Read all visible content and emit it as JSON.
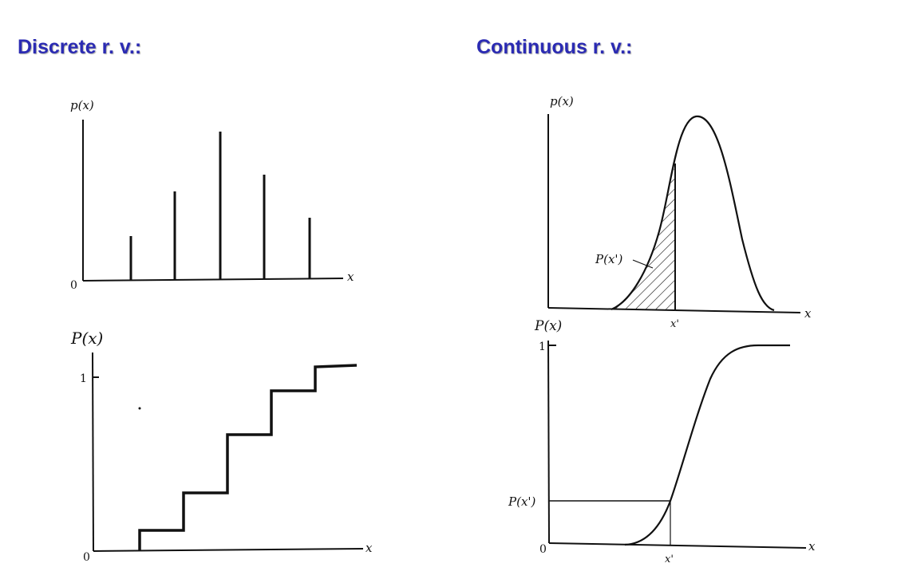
{
  "headings": {
    "discrete": "Discrete r. v.:",
    "continuous": "Continuous r. v.:"
  },
  "panels": {
    "discrete_pmf": {
      "ylabel": "p(x)",
      "xlabel": "x",
      "origin": "0"
    },
    "discrete_cdf": {
      "ylabel": "P(x)",
      "xlabel": "x",
      "origin": "0",
      "ytick": "1"
    },
    "continuous_pdf": {
      "ylabel": "p(x)",
      "xlabel": "x",
      "xtick": "x'",
      "area_label": "P(x')"
    },
    "continuous_cdf": {
      "ylabel": "P(x)",
      "xlabel": "x",
      "origin": "0",
      "ytick": "1",
      "ytick2": "P(x')",
      "xtick": "x'"
    }
  },
  "colors": {
    "heading": "#2b2bb3",
    "ink": "#111111",
    "background": "#ffffff"
  }
}
